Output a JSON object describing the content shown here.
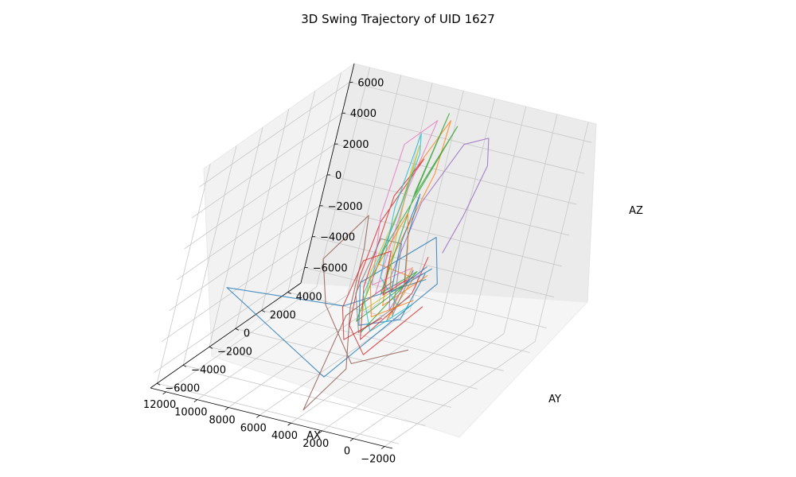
{
  "chart_data": {
    "type": "line",
    "projection": "3d",
    "title": "3D Swing Trajectory of UID 1627",
    "xlabel": "AX",
    "ylabel": "AY",
    "zlabel": "AZ",
    "xlim": [
      -2500,
      13000
    ],
    "ylim": [
      -6500,
      5000
    ],
    "zlim": [
      -7000,
      7200
    ],
    "x_ticks": [
      "−2000",
      "0",
      "2000",
      "4000",
      "6000",
      "8000",
      "10000",
      "12000"
    ],
    "y_ticks": [
      "−6000",
      "−4000",
      "−2000",
      "0",
      "2000",
      "4000"
    ],
    "z_ticks": [
      "6000",
      "4000",
      "2000",
      "0",
      "−2000",
      "−4000",
      "−6000"
    ],
    "grid": true,
    "legend": "none",
    "series": [
      {
        "color": "#1f77b4",
        "points": [
          [
            3000,
            1000,
            -1500
          ],
          [
            2200,
            -1500,
            -2800
          ],
          [
            3500,
            -3200,
            -2500
          ],
          [
            4500,
            -2500,
            -400
          ],
          [
            3200,
            1500,
            500
          ],
          [
            2000,
            800,
            -1800
          ],
          [
            4000,
            -4500,
            -5200
          ],
          [
            11500,
            -4000,
            -1600
          ],
          [
            6500,
            -500,
            -3600
          ],
          [
            3000,
            1200,
            -2000
          ]
        ]
      },
      {
        "color": "#ff7f0e",
        "points": [
          [
            2500,
            500,
            -1200
          ],
          [
            3800,
            -1000,
            -2600
          ],
          [
            4800,
            200,
            -800
          ],
          [
            5200,
            3000,
            3200
          ],
          [
            5800,
            4200,
            5800
          ],
          [
            6200,
            2500,
            3400
          ],
          [
            5000,
            -500,
            -500
          ],
          [
            3500,
            800,
            -1800
          ],
          [
            2800,
            -1800,
            -2800
          ],
          [
            3600,
            600,
            -1000
          ]
        ]
      },
      {
        "color": "#2ca02c",
        "points": [
          [
            3200,
            -200,
            -1500
          ],
          [
            4500,
            -2000,
            -3200
          ],
          [
            5600,
            600,
            -400
          ],
          [
            4400,
            2800,
            6600
          ],
          [
            5200,
            1600,
            2600
          ],
          [
            6000,
            4200,
            6200
          ],
          [
            5600,
            2200,
            2400
          ],
          [
            4200,
            -800,
            -2000
          ],
          [
            3000,
            200,
            -900
          ],
          [
            3800,
            -2400,
            -3500
          ]
        ]
      },
      {
        "color": "#d62728",
        "points": [
          [
            1500,
            -800,
            -2200
          ],
          [
            2600,
            -3500,
            -4000
          ],
          [
            4200,
            -3000,
            -2800
          ],
          [
            5600,
            -1000,
            -1200
          ],
          [
            6600,
            1200,
            800
          ],
          [
            6200,
            3200,
            3800
          ],
          [
            7200,
            2800,
            1400
          ],
          [
            5600,
            -400,
            -2200
          ],
          [
            3600,
            -2600,
            -3800
          ],
          [
            2200,
            -1000,
            -1400
          ],
          [
            3200,
            1200,
            -600
          ]
        ]
      },
      {
        "color": "#9467bd",
        "points": [
          [
            2800,
            1800,
            -600
          ],
          [
            2600,
            2600,
            1400
          ],
          [
            2400,
            3400,
            4200
          ],
          [
            3000,
            3800,
            5600
          ],
          [
            4000,
            3200,
            5300
          ],
          [
            4600,
            1500,
            2400
          ],
          [
            4000,
            -600,
            -1000
          ],
          [
            3000,
            -1500,
            -2400
          ],
          [
            3500,
            600,
            -1200
          ]
        ]
      },
      {
        "color": "#8c564b",
        "points": [
          [
            800,
            -2200,
            -4000
          ],
          [
            3000,
            -3800,
            -4500
          ],
          [
            6200,
            -2600,
            -2200
          ],
          [
            8200,
            -800,
            -800
          ],
          [
            7600,
            1500,
            800
          ],
          [
            6800,
            600,
            -600
          ],
          [
            5200,
            -1800,
            -2600
          ],
          [
            3500,
            -3400,
            -5200
          ],
          [
            4300,
            -5200,
            -7000
          ],
          [
            5200,
            -2000,
            -3000
          ],
          [
            4000,
            -300,
            -1500
          ]
        ]
      },
      {
        "color": "#e377c2",
        "points": [
          [
            3000,
            800,
            -1400
          ],
          [
            4800,
            -400,
            -2400
          ],
          [
            6200,
            2400,
            2400
          ],
          [
            6600,
            4200,
            5600
          ],
          [
            7600,
            3200,
            4400
          ],
          [
            6800,
            1400,
            1000
          ],
          [
            5000,
            -600,
            -1800
          ],
          [
            3400,
            200,
            -800
          ]
        ]
      },
      {
        "color": "#7f7f7f",
        "points": [
          [
            2600,
            -500,
            -2000
          ],
          [
            3800,
            -2600,
            -3400
          ],
          [
            5200,
            -1600,
            -1800
          ],
          [
            5800,
            400,
            400
          ],
          [
            5000,
            1200,
            -200
          ],
          [
            3800,
            -200,
            -1600
          ],
          [
            2800,
            -1400,
            -2800
          ],
          [
            3400,
            400,
            -1000
          ]
        ]
      },
      {
        "color": "#bcbd22",
        "points": [
          [
            3400,
            -300,
            -1600
          ],
          [
            4400,
            -1800,
            -2600
          ],
          [
            5400,
            -400,
            -1200
          ],
          [
            6000,
            1800,
            1600
          ],
          [
            6800,
            3400,
            4400
          ],
          [
            6000,
            2000,
            1800
          ],
          [
            4800,
            300,
            -600
          ],
          [
            3800,
            -600,
            -1800
          ]
        ]
      },
      {
        "color": "#17becf",
        "points": [
          [
            1800,
            -1400,
            -1800
          ],
          [
            3000,
            -2800,
            -3000
          ],
          [
            4600,
            -1800,
            -1600
          ],
          [
            5600,
            1000,
            1200
          ],
          [
            6400,
            3000,
            4200
          ],
          [
            7000,
            3600,
            5000
          ],
          [
            6200,
            1600,
            1600
          ],
          [
            4600,
            -600,
            -1200
          ],
          [
            2800,
            -1200,
            -2200
          ]
        ]
      },
      {
        "color": "#1f77b4",
        "points": [
          [
            2400,
            600,
            -800
          ],
          [
            3600,
            -800,
            -1800
          ],
          [
            4800,
            800,
            0
          ],
          [
            5400,
            2400,
            2200
          ],
          [
            4600,
            1000,
            600
          ],
          [
            3200,
            -400,
            -1400
          ],
          [
            2600,
            400,
            -600
          ]
        ]
      },
      {
        "color": "#ff7f0e",
        "points": [
          [
            2000,
            -1000,
            -1800
          ],
          [
            3400,
            -2400,
            -2400
          ],
          [
            4800,
            -1200,
            -1000
          ],
          [
            5200,
            1400,
            1600
          ],
          [
            4200,
            600,
            200
          ],
          [
            3000,
            -600,
            -1400
          ]
        ]
      },
      {
        "color": "#d62728",
        "points": [
          [
            3000,
            -2000,
            -2600
          ],
          [
            4200,
            -3200,
            -3600
          ],
          [
            5400,
            -2200,
            -2400
          ],
          [
            6000,
            -400,
            -600
          ],
          [
            5000,
            400,
            -200
          ],
          [
            3800,
            -1200,
            -1800
          ],
          [
            3200,
            -300,
            -1200
          ]
        ]
      }
    ]
  }
}
